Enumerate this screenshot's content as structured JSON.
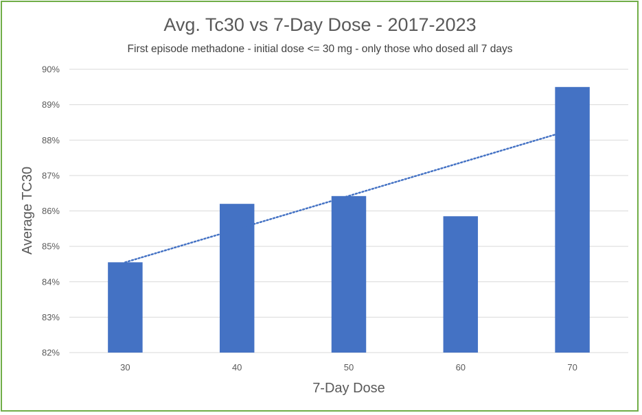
{
  "chart_data": {
    "type": "bar",
    "title": "Avg. Tc30 vs 7-Day Dose - 2017-2023",
    "subtitle": "First episode methadone - initial dose <= 30 mg - only those who dosed all 7 days",
    "xlabel": "7-Day Dose",
    "ylabel": "Average TC30",
    "categories": [
      "30",
      "40",
      "50",
      "60",
      "70"
    ],
    "values": [
      84.55,
      86.2,
      86.42,
      85.85,
      89.5
    ],
    "value_unit": "%",
    "ylim": [
      82,
      90
    ],
    "yticks": [
      "82%",
      "83%",
      "84%",
      "85%",
      "86%",
      "87%",
      "88%",
      "89%",
      "90%"
    ],
    "grid": true,
    "legend": "none",
    "trendline": {
      "type": "linear",
      "style": "dotted",
      "start": 84.55,
      "end": 88.3
    },
    "colors": {
      "bar": "#4472c4",
      "trendline": "#4472c4",
      "grid": "#d9d9d9",
      "border": "#70ad47"
    }
  }
}
